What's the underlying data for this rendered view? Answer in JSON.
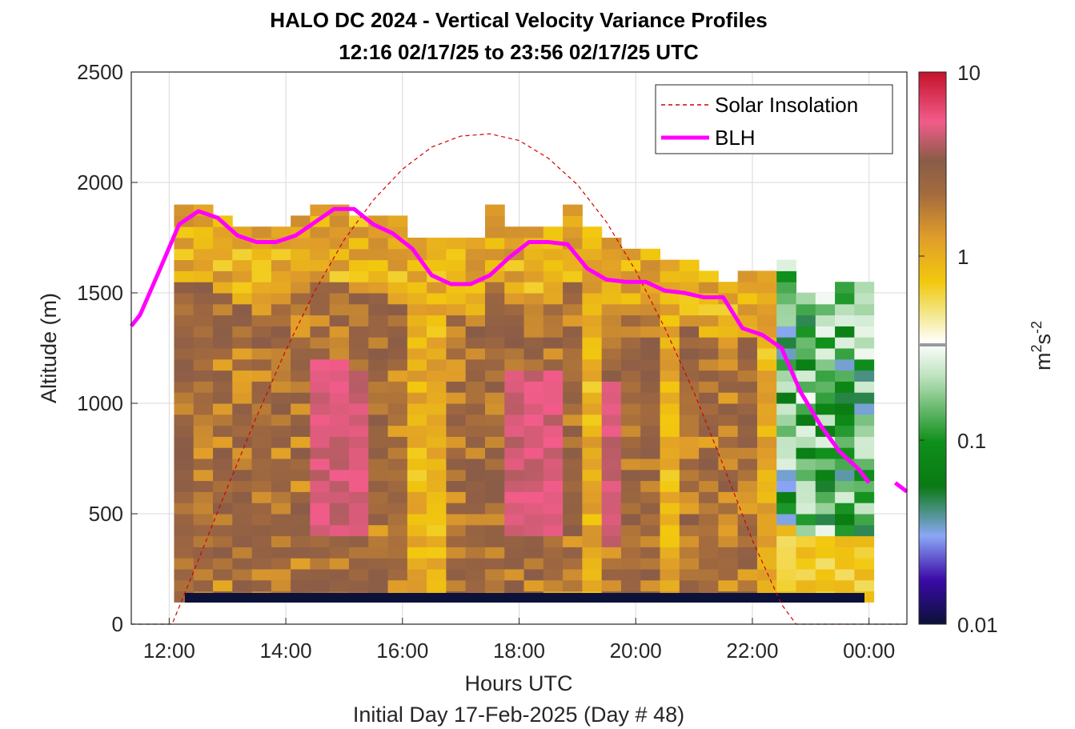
{
  "chart_data": {
    "type": "heatmap",
    "title_line1": "HALO DC 2024 - Vertical Velocity Variance Profiles",
    "title_line2": "12:16 02/17/25 to 23:56 02/17/25  UTC",
    "xlabel": "Hours UTC",
    "xlabel2": "Initial Day 17-Feb-2025 (Day # 48)",
    "ylabel": "Altitude (m)",
    "colorbar_label_base": "m",
    "colorbar_label_exp1": "2",
    "colorbar_label_mid": "s",
    "colorbar_label_exp2": "-2",
    "x_range_hours": [
      11.35,
      24.65
    ],
    "ylim": [
      0,
      2500
    ],
    "x_ticks": [
      12,
      14,
      16,
      18,
      20,
      22,
      24
    ],
    "x_tick_labels": [
      "12:00",
      "14:00",
      "16:00",
      "18:00",
      "20:00",
      "22:00",
      "00:00"
    ],
    "y_ticks": [
      0,
      500,
      1000,
      1500,
      2000,
      2500
    ],
    "y_tick_labels": [
      "0",
      "500",
      "1000",
      "1500",
      "2000",
      "2500"
    ],
    "colorbar_ticks": [
      0.01,
      0.1,
      1,
      10
    ],
    "colorbar_tick_labels": [
      "0.01",
      "0.1",
      "1",
      "10"
    ],
    "color_scale": "log",
    "grid": true,
    "legend_position": "top-right",
    "colors": {
      "solar": "#d40000",
      "blh": "#ff00ff",
      "grid": "#d9d9d9"
    },
    "heatmap": {
      "x_start_hour": 12.25,
      "x_step_hours": 0.3333,
      "columns": 36,
      "altitude_start_m": 100,
      "altitude_step_m": 50,
      "note": "cells [altitude_index, value m^2 s^-2] per time column",
      "top_altitudes_m": [
        1870,
        1870,
        1820,
        1770,
        1770,
        1770,
        1820,
        1870,
        1870,
        1820,
        1820,
        1820,
        1720,
        1720,
        1720,
        1720,
        1870,
        1770,
        1770,
        1770,
        1870,
        1770,
        1720,
        1670,
        1670,
        1620,
        1620,
        1570,
        1520,
        1570,
        1570,
        1620,
        1470,
        1470,
        1520,
        1520
      ]
    },
    "series": [
      {
        "name": "Solar Insolation",
        "style": "dashed",
        "x_hours": [
          11.35,
          12.05,
          12.5,
          13.0,
          13.5,
          14.0,
          14.5,
          15.0,
          15.5,
          16.0,
          16.5,
          17.0,
          17.5,
          18.0,
          18.5,
          19.0,
          19.5,
          20.0,
          20.5,
          21.0,
          21.5,
          22.0,
          22.5,
          22.75,
          23.0,
          24.65
        ],
        "y": [
          0,
          0,
          290,
          620,
          940,
          1240,
          1510,
          1740,
          1920,
          2060,
          2160,
          2210,
          2220,
          2190,
          2110,
          1990,
          1820,
          1600,
          1340,
          1050,
          720,
          380,
          90,
          0,
          0,
          0
        ]
      },
      {
        "name": "BLH",
        "style": "solid",
        "x_hours": [
          11.35,
          11.5,
          11.83,
          12.17,
          12.5,
          12.83,
          13.17,
          13.5,
          13.83,
          14.17,
          14.5,
          14.83,
          15.17,
          15.5,
          15.83,
          16.17,
          16.5,
          16.83,
          17.17,
          17.5,
          17.83,
          18.17,
          18.5,
          18.83,
          19.17,
          19.5,
          19.83,
          20.17,
          20.5,
          20.83,
          21.17,
          21.5,
          21.83,
          22.17,
          22.5,
          22.83,
          23.17,
          23.5,
          23.83,
          24.0
        ],
        "y": [
          1350,
          1400,
          1600,
          1810,
          1870,
          1840,
          1760,
          1730,
          1730,
          1760,
          1820,
          1880,
          1880,
          1810,
          1770,
          1700,
          1580,
          1540,
          1540,
          1580,
          1660,
          1730,
          1730,
          1720,
          1610,
          1560,
          1550,
          1550,
          1510,
          1500,
          1480,
          1480,
          1340,
          1310,
          1250,
          1050,
          900,
          780,
          700,
          640
        ],
        "tail_x_hours": [
          24.45,
          24.65
        ],
        "tail_y": [
          640,
          600
        ]
      }
    ]
  }
}
